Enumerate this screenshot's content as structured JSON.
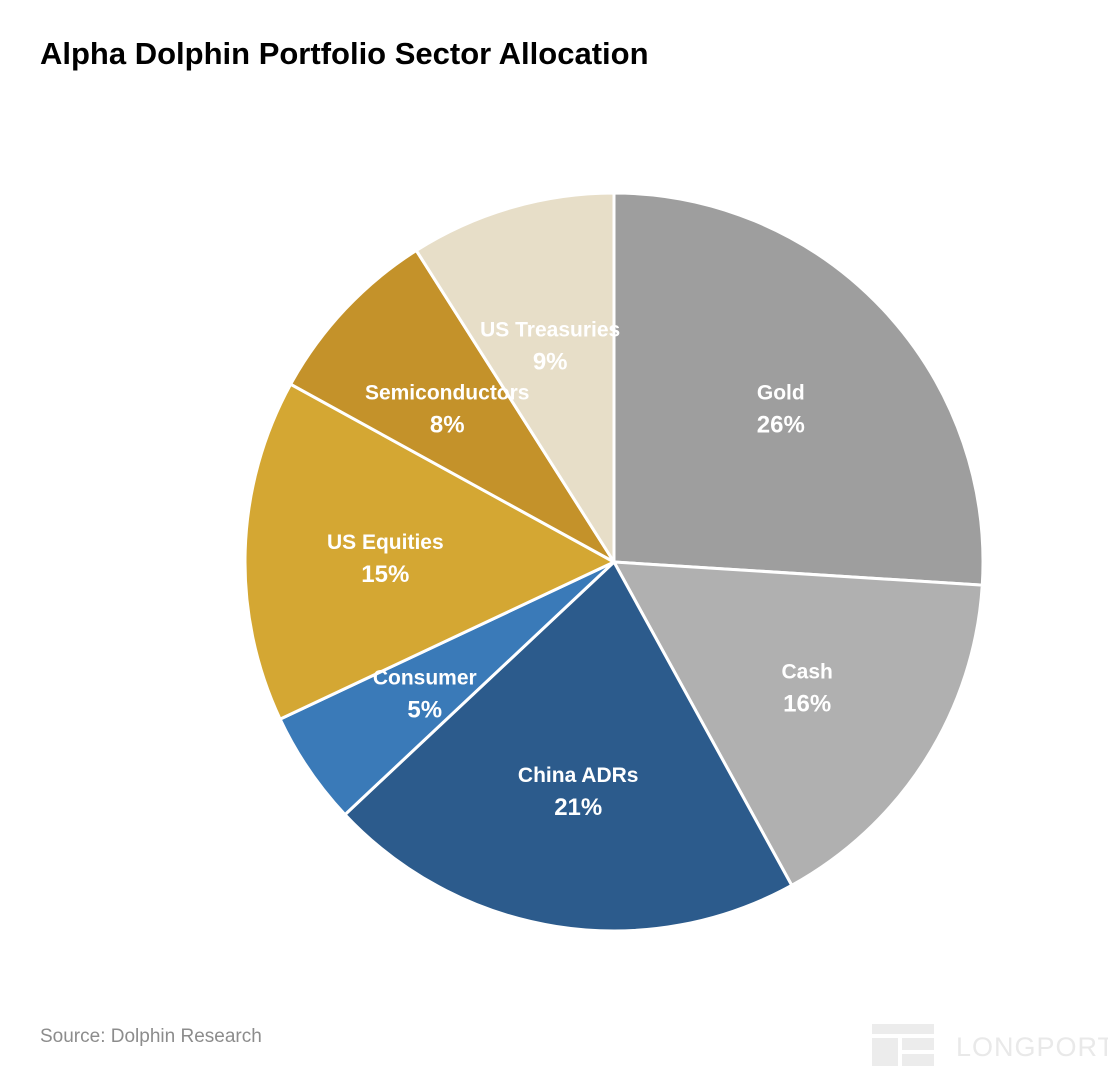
{
  "title": "Alpha Dolphin Portfolio Sector Allocation",
  "source": "Source: Dolphin Research",
  "watermark": "LONGPORT",
  "chart_data": {
    "type": "pie",
    "title": "Alpha Dolphin Portfolio Sector Allocation",
    "start": "12 o'clock",
    "direction": "clockwise",
    "slices": [
      {
        "label": "Gold",
        "value_label": "26%",
        "value": 26,
        "color": "#9e9e9e"
      },
      {
        "label": "Cash",
        "value_label": "16%",
        "value": 16,
        "color": "#b0b0b0"
      },
      {
        "label": "China ADRs",
        "value_label": "21%",
        "value": 21,
        "color": "#2c5b8c"
      },
      {
        "label": "Consumer",
        "value_label": "5%",
        "value": 5,
        "color": "#3a7ab8"
      },
      {
        "label": "US Equities",
        "value_label": "15%",
        "value": 15,
        "color": "#d4a733"
      },
      {
        "label": "Semiconductors",
        "value_label": "8%",
        "value": 8,
        "color": "#c4922a"
      },
      {
        "label": "US Treasuries",
        "value_label": "9%",
        "value": 9,
        "color": "#e7dec8"
      }
    ]
  }
}
